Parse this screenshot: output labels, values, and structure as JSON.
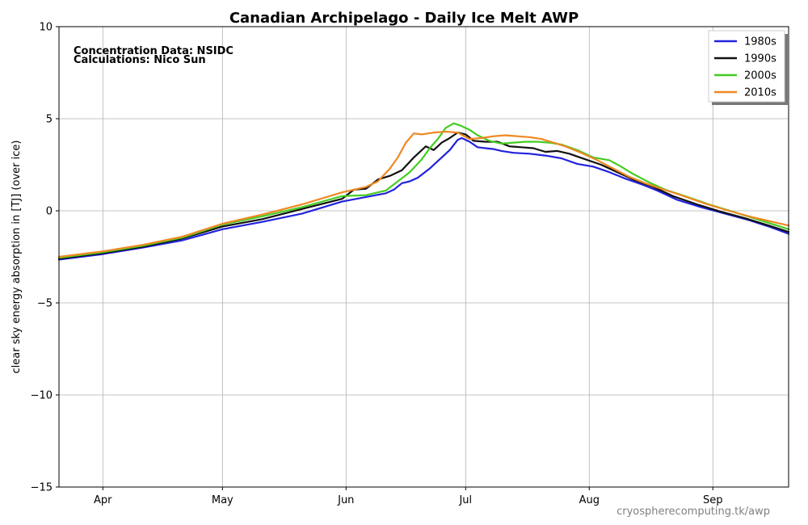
{
  "chart_data": {
    "type": "line",
    "title": "Canadian Archipelago - Daily Ice Melt  AWP",
    "xlabel": "",
    "ylabel": "clear sky energy absorption in  [TJ] (over ice)",
    "xlim": [
      "Mar 21",
      "Sep 20"
    ],
    "ylim": [
      -15,
      10
    ],
    "x_ticks": [
      {
        "date": "Apr 1",
        "label": "Apr"
      },
      {
        "date": "May 1",
        "label": "May"
      },
      {
        "date": "Jun 1",
        "label": "Jun"
      },
      {
        "date": "Jul 1",
        "label": "Jul"
      },
      {
        "date": "Aug 1",
        "label": "Aug"
      },
      {
        "date": "Sep 1",
        "label": "Sep"
      }
    ],
    "y_ticks": [
      10,
      5,
      0,
      -5,
      -10,
      -15
    ],
    "y_tick_labels": [
      "10",
      "5",
      "0",
      "−5",
      "−10",
      "−15"
    ],
    "grid": true,
    "legend_position": "top-right",
    "annotations": [
      "Concentration Data: NSIDC",
      "Calculations: Nico Sun"
    ],
    "credit": "cryospherecomputing.tk/awp",
    "series": [
      {
        "name": "1980s",
        "color": "#2222dd",
        "points": [
          [
            "Mar 21",
            -2.65
          ],
          [
            "Apr 1",
            -2.35
          ],
          [
            "Apr 11",
            -2.0
          ],
          [
            "Apr 21",
            -1.6
          ],
          [
            "May 1",
            -1.0
          ],
          [
            "May 11",
            -0.6
          ],
          [
            "May 21",
            -0.15
          ],
          [
            "May 31",
            0.5
          ],
          [
            "Jun 6",
            0.75
          ],
          [
            "Jun 11",
            0.95
          ],
          [
            "Jun 13",
            1.15
          ],
          [
            "Jun 15",
            1.5
          ],
          [
            "Jun 17",
            1.6
          ],
          [
            "Jun 19",
            1.8
          ],
          [
            "Jun 22",
            2.3
          ],
          [
            "Jun 25",
            2.9
          ],
          [
            "Jun 27",
            3.3
          ],
          [
            "Jun 29",
            3.85
          ],
          [
            "Jun 30",
            3.95
          ],
          [
            "Jul 2",
            3.75
          ],
          [
            "Jul 4",
            3.45
          ],
          [
            "Jul 6",
            3.4
          ],
          [
            "Jul 8",
            3.35
          ],
          [
            "Jul 10",
            3.25
          ],
          [
            "Jul 13",
            3.15
          ],
          [
            "Jul 17",
            3.1
          ],
          [
            "Jul 21",
            3.0
          ],
          [
            "Jul 25",
            2.85
          ],
          [
            "Jul 29",
            2.55
          ],
          [
            "Aug 2",
            2.4
          ],
          [
            "Aug 6",
            2.1
          ],
          [
            "Aug 10",
            1.75
          ],
          [
            "Aug 14",
            1.45
          ],
          [
            "Aug 18",
            1.1
          ],
          [
            "Aug 23",
            0.6
          ],
          [
            "Aug 29",
            0.2
          ],
          [
            "Sep 4",
            -0.15
          ],
          [
            "Sep 10",
            -0.5
          ],
          [
            "Sep 15",
            -0.85
          ],
          [
            "Sep 20",
            -1.25
          ]
        ]
      },
      {
        "name": "1990s",
        "color": "#111111",
        "points": [
          [
            "Mar 21",
            -2.6
          ],
          [
            "Apr 1",
            -2.3
          ],
          [
            "Apr 11",
            -1.95
          ],
          [
            "Apr 21",
            -1.5
          ],
          [
            "May 1",
            -0.85
          ],
          [
            "May 11",
            -0.45
          ],
          [
            "May 21",
            0.1
          ],
          [
            "May 31",
            0.65
          ],
          [
            "Jun 3",
            1.15
          ],
          [
            "Jun 6",
            1.2
          ],
          [
            "Jun 9",
            1.7
          ],
          [
            "Jun 12",
            1.9
          ],
          [
            "Jun 15",
            2.2
          ],
          [
            "Jun 18",
            2.9
          ],
          [
            "Jun 21",
            3.5
          ],
          [
            "Jun 23",
            3.3
          ],
          [
            "Jun 25",
            3.7
          ],
          [
            "Jun 27",
            3.95
          ],
          [
            "Jun 29",
            4.25
          ],
          [
            "Jul 1",
            4.15
          ],
          [
            "Jul 3",
            3.8
          ],
          [
            "Jul 6",
            3.75
          ],
          [
            "Jul 9",
            3.75
          ],
          [
            "Jul 12",
            3.5
          ],
          [
            "Jul 15",
            3.45
          ],
          [
            "Jul 18",
            3.4
          ],
          [
            "Jul 21",
            3.2
          ],
          [
            "Jul 24",
            3.25
          ],
          [
            "Jul 27",
            3.1
          ],
          [
            "Jul 31",
            2.8
          ],
          [
            "Aug 4",
            2.5
          ],
          [
            "Aug 8",
            2.1
          ],
          [
            "Aug 12",
            1.7
          ],
          [
            "Aug 17",
            1.3
          ],
          [
            "Aug 22",
            0.8
          ],
          [
            "Aug 28",
            0.35
          ],
          [
            "Sep 3",
            -0.05
          ],
          [
            "Sep 9",
            -0.4
          ],
          [
            "Sep 15",
            -0.8
          ],
          [
            "Sep 20",
            -1.15
          ]
        ]
      },
      {
        "name": "2000s",
        "color": "#44cc22",
        "points": [
          [
            "Mar 21",
            -2.55
          ],
          [
            "Apr 1",
            -2.25
          ],
          [
            "Apr 11",
            -1.9
          ],
          [
            "Apr 21",
            -1.45
          ],
          [
            "May 1",
            -0.75
          ],
          [
            "May 11",
            -0.3
          ],
          [
            "May 21",
            0.2
          ],
          [
            "May 31",
            0.8
          ],
          [
            "Jun 6",
            0.85
          ],
          [
            "Jun 11",
            1.1
          ],
          [
            "Jun 14",
            1.6
          ],
          [
            "Jun 17",
            2.1
          ],
          [
            "Jun 20",
            2.8
          ],
          [
            "Jun 22",
            3.4
          ],
          [
            "Jun 24",
            3.9
          ],
          [
            "Jun 26",
            4.5
          ],
          [
            "Jun 28",
            4.75
          ],
          [
            "Jun 30",
            4.6
          ],
          [
            "Jul 2",
            4.4
          ],
          [
            "Jul 4",
            4.1
          ],
          [
            "Jul 7",
            3.8
          ],
          [
            "Jul 10",
            3.65
          ],
          [
            "Jul 13",
            3.7
          ],
          [
            "Jul 16",
            3.75
          ],
          [
            "Jul 19",
            3.75
          ],
          [
            "Jul 22",
            3.7
          ],
          [
            "Jul 25",
            3.6
          ],
          [
            "Jul 29",
            3.3
          ],
          [
            "Aug 2",
            2.9
          ],
          [
            "Aug 6",
            2.75
          ],
          [
            "Aug 9",
            2.4
          ],
          [
            "Aug 12",
            2.0
          ],
          [
            "Aug 16",
            1.55
          ],
          [
            "Aug 20",
            1.15
          ],
          [
            "Aug 25",
            0.8
          ],
          [
            "Aug 31",
            0.35
          ],
          [
            "Sep 6",
            -0.05
          ],
          [
            "Sep 12",
            -0.45
          ],
          [
            "Sep 20",
            -1.0
          ]
        ]
      },
      {
        "name": "2010s",
        "color": "#ee8822",
        "points": [
          [
            "Mar 21",
            -2.5
          ],
          [
            "Apr 1",
            -2.2
          ],
          [
            "Apr 11",
            -1.85
          ],
          [
            "Apr 21",
            -1.4
          ],
          [
            "May 1",
            -0.7
          ],
          [
            "May 11",
            -0.2
          ],
          [
            "May 21",
            0.35
          ],
          [
            "May 31",
            1.0
          ],
          [
            "Jun 3",
            1.15
          ],
          [
            "Jun 6",
            1.3
          ],
          [
            "Jun 9",
            1.6
          ],
          [
            "Jun 12",
            2.3
          ],
          [
            "Jun 14",
            2.9
          ],
          [
            "Jun 16",
            3.7
          ],
          [
            "Jun 18",
            4.2
          ],
          [
            "Jun 20",
            4.15
          ],
          [
            "Jun 23",
            4.25
          ],
          [
            "Jun 26",
            4.3
          ],
          [
            "Jun 29",
            4.25
          ],
          [
            "Jul 2",
            3.9
          ],
          [
            "Jul 5",
            3.95
          ],
          [
            "Jul 8",
            4.05
          ],
          [
            "Jul 11",
            4.1
          ],
          [
            "Jul 14",
            4.05
          ],
          [
            "Jul 17",
            4.0
          ],
          [
            "Jul 20",
            3.9
          ],
          [
            "Jul 23",
            3.7
          ],
          [
            "Jul 26",
            3.5
          ],
          [
            "Jul 30",
            3.15
          ],
          [
            "Aug 3",
            2.75
          ],
          [
            "Aug 7",
            2.3
          ],
          [
            "Aug 11",
            1.85
          ],
          [
            "Aug 15",
            1.5
          ],
          [
            "Aug 19",
            1.2
          ],
          [
            "Aug 24",
            0.85
          ],
          [
            "Aug 30",
            0.4
          ],
          [
            "Sep 5",
            0.0
          ],
          [
            "Sep 11",
            -0.35
          ],
          [
            "Sep 17",
            -0.65
          ],
          [
            "Sep 20",
            -0.8
          ]
        ]
      }
    ]
  }
}
